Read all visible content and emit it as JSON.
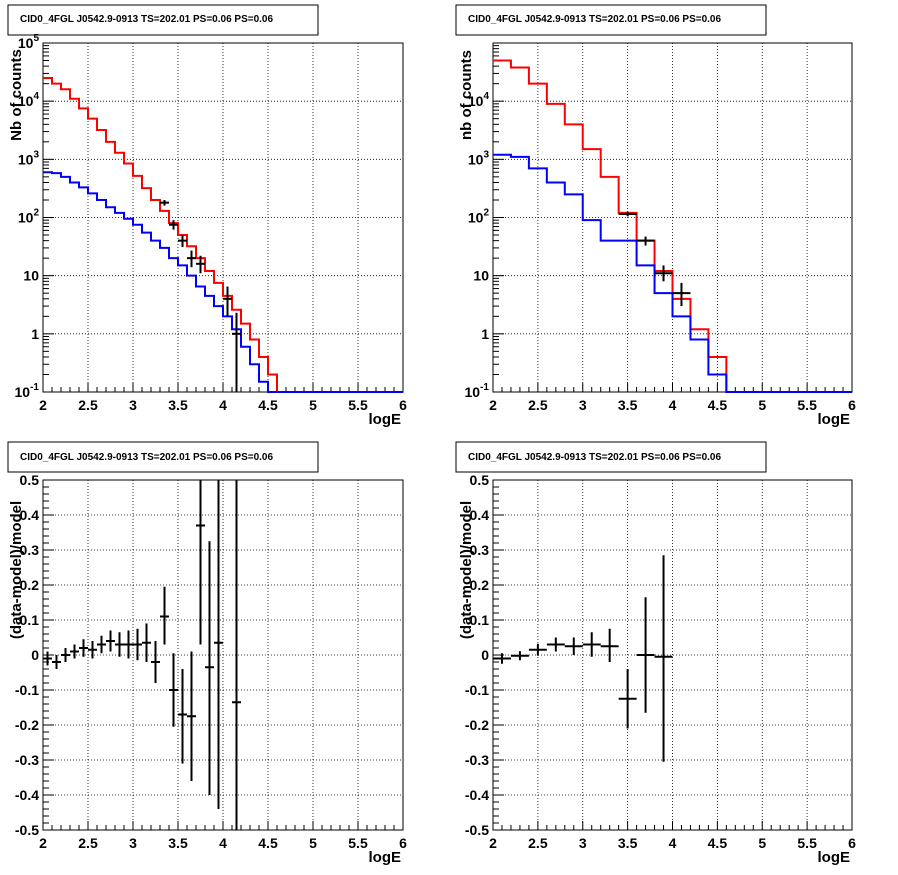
{
  "chart_data": [
    {
      "type": "line",
      "title": "CID0_4FGL J0542.9-0913 TS=202.01 PS=0.06 PS=0.06",
      "xlabel": "logE",
      "ylabel": "Nb of counts",
      "xlim": [
        2,
        6
      ],
      "ylim": [
        0.1,
        100000
      ],
      "yscale": "log",
      "grid": true,
      "x_ticks": [
        "2",
        "2.5",
        "3",
        "3.5",
        "4",
        "4.5",
        "5",
        "5.5",
        "6"
      ],
      "y_ticks": [
        {
          "v": 0.1,
          "base": "10",
          "sup": "-1"
        },
        {
          "v": 1,
          "base": "1",
          "sup": ""
        },
        {
          "v": 10,
          "base": "10",
          "sup": ""
        },
        {
          "v": 100,
          "base": "10",
          "sup": "2"
        },
        {
          "v": 1000,
          "base": "10",
          "sup": "3"
        },
        {
          "v": 10000,
          "base": "10",
          "sup": "4"
        },
        {
          "v": 100000,
          "base": "10",
          "sup": "5"
        }
      ],
      "bin_edges": [
        2,
        2.1,
        2.2,
        2.3,
        2.4,
        2.5,
        2.6,
        2.7,
        2.8,
        2.9,
        3.0,
        3.1,
        3.2,
        3.3,
        3.4,
        3.5,
        3.6,
        3.7,
        3.8,
        3.9,
        4.0,
        4.1,
        4.2,
        4.3,
        4.4,
        4.5,
        4.6,
        4.7,
        4.8,
        4.9,
        5.0,
        5.1,
        5.2,
        5.3,
        5.4,
        5.5,
        5.6,
        5.7,
        5.8,
        5.9,
        6.0
      ],
      "series": [
        {
          "color": "#ff0000",
          "values": [
            25000,
            20000,
            16000,
            11000,
            7500,
            5000,
            3200,
            2000,
            1300,
            850,
            520,
            320,
            200,
            130,
            80,
            50,
            32,
            20,
            12,
            7.5,
            4.5,
            2.6,
            1.5,
            0.8,
            0.4,
            0.2,
            0.1,
            0.1,
            0.1,
            0.1,
            0.1,
            0.1,
            0.1,
            0.1,
            0.1,
            0.1,
            0.1,
            0.1,
            0.1,
            0.1
          ]
        },
        {
          "color": "#0000ff",
          "values": [
            600,
            580,
            500,
            400,
            330,
            260,
            200,
            150,
            120,
            95,
            75,
            55,
            40,
            30,
            20,
            15,
            10,
            6.5,
            4.5,
            3,
            2,
            1.2,
            0.6,
            0.3,
            0.15,
            0.1,
            0.1,
            0.1,
            0.1,
            0.1,
            0.1,
            0.1,
            0.1,
            0.1,
            0.1,
            0.1,
            0.1,
            0.1,
            0.1,
            0.1
          ]
        }
      ],
      "points": [
        {
          "x": 3.35,
          "y": 180,
          "xerr": 0.05,
          "ylo": 160,
          "yhi": 200
        },
        {
          "x": 3.45,
          "y": 75,
          "xerr": 0.05,
          "ylo": 62,
          "yhi": 90
        },
        {
          "x": 3.55,
          "y": 40,
          "xerr": 0.05,
          "ylo": 31,
          "yhi": 50
        },
        {
          "x": 3.65,
          "y": 20,
          "xerr": 0.05,
          "ylo": 14,
          "yhi": 27
        },
        {
          "x": 3.75,
          "y": 16,
          "xerr": 0.05,
          "ylo": 11,
          "yhi": 22
        },
        {
          "x": 4.05,
          "y": 4,
          "xerr": 0.05,
          "ylo": 2,
          "yhi": 6.5
        },
        {
          "x": 4.15,
          "y": 1,
          "xerr": 0.05,
          "ylo": 0.1,
          "yhi": 2.3
        }
      ]
    },
    {
      "type": "line",
      "title": "CID0_4FGL J0542.9-0913 TS=202.01 PS=0.06 PS=0.06",
      "xlabel": "logE",
      "ylabel": "nb of counts",
      "xlim": [
        2,
        6
      ],
      "ylim": [
        0.1,
        100000
      ],
      "yscale": "log",
      "grid": true,
      "x_ticks": [
        "2",
        "2.5",
        "3",
        "3.5",
        "4",
        "4.5",
        "5",
        "5.5",
        "6"
      ],
      "y_ticks": [
        {
          "v": 0.1,
          "base": "10",
          "sup": "-1"
        },
        {
          "v": 1,
          "base": "1",
          "sup": ""
        },
        {
          "v": 10,
          "base": "10",
          "sup": ""
        },
        {
          "v": 100,
          "base": "10",
          "sup": "2"
        },
        {
          "v": 1000,
          "base": "10",
          "sup": "3"
        },
        {
          "v": 10000,
          "base": "10",
          "sup": "4"
        }
      ],
      "bin_edges": [
        2,
        2.2,
        2.4,
        2.6,
        2.8,
        3.0,
        3.2,
        3.4,
        3.6,
        3.8,
        4.0,
        4.2,
        4.4,
        4.6,
        4.8,
        5.0,
        5.2,
        5.4,
        5.6,
        5.8,
        6.0
      ],
      "series": [
        {
          "color": "#ff0000",
          "values": [
            50000,
            38000,
            20000,
            9000,
            4000,
            1500,
            500,
            120,
            40,
            12,
            4,
            1.2,
            0.4,
            0.1,
            0.1,
            0.1,
            0.1,
            0.1,
            0.1,
            0.1
          ]
        },
        {
          "color": "#0000ff",
          "values": [
            1200,
            1100,
            700,
            400,
            250,
            90,
            40,
            40,
            15,
            5,
            2,
            0.8,
            0.2,
            0.1,
            0.1,
            0.1,
            0.1,
            0.1,
            0.1,
            0.1
          ]
        }
      ],
      "points": [
        {
          "x": 3.5,
          "y": 115,
          "xerr": 0.1,
          "ylo": 105,
          "yhi": 126
        },
        {
          "x": 3.7,
          "y": 40,
          "xerr": 0.1,
          "ylo": 33,
          "yhi": 47
        },
        {
          "x": 3.9,
          "y": 11,
          "xerr": 0.1,
          "ylo": 8,
          "yhi": 15
        },
        {
          "x": 4.1,
          "y": 5,
          "xerr": 0.1,
          "ylo": 3,
          "yhi": 7.5
        }
      ]
    },
    {
      "type": "scatter",
      "title": "CID0_4FGL J0542.9-0913 TS=202.01 PS=0.06 PS=0.06",
      "xlabel": "logE",
      "ylabel": "(data-model)/model",
      "xlim": [
        2,
        6
      ],
      "ylim": [
        -0.5,
        0.5
      ],
      "grid": true,
      "x_ticks": [
        "2",
        "2.5",
        "3",
        "3.5",
        "4",
        "4.5",
        "5",
        "5.5",
        "6"
      ],
      "y_ticks": [
        "-0.5",
        "-0.4",
        "-0.3",
        "-0.2",
        "-0.1",
        "0",
        "0.1",
        "0.2",
        "0.3",
        "0.4",
        "0.5"
      ],
      "points": [
        {
          "x": 2.05,
          "y": -0.01,
          "xerr": 0.05,
          "ylo": -0.03,
          "yhi": 0.01
        },
        {
          "x": 2.15,
          "y": -0.02,
          "xerr": 0.05,
          "ylo": -0.04,
          "yhi": 0.0
        },
        {
          "x": 2.25,
          "y": 0.0,
          "xerr": 0.05,
          "ylo": -0.02,
          "yhi": 0.02
        },
        {
          "x": 2.35,
          "y": 0.01,
          "xerr": 0.05,
          "ylo": -0.01,
          "yhi": 0.03
        },
        {
          "x": 2.45,
          "y": 0.02,
          "xerr": 0.05,
          "ylo": -0.005,
          "yhi": 0.045
        },
        {
          "x": 2.55,
          "y": 0.015,
          "xerr": 0.05,
          "ylo": -0.01,
          "yhi": 0.04
        },
        {
          "x": 2.65,
          "y": 0.03,
          "xerr": 0.05,
          "ylo": 0.005,
          "yhi": 0.055
        },
        {
          "x": 2.75,
          "y": 0.04,
          "xerr": 0.05,
          "ylo": 0.01,
          "yhi": 0.07
        },
        {
          "x": 2.85,
          "y": 0.03,
          "xerr": 0.05,
          "ylo": -0.005,
          "yhi": 0.065
        },
        {
          "x": 2.95,
          "y": 0.03,
          "xerr": 0.05,
          "ylo": -0.01,
          "yhi": 0.07
        },
        {
          "x": 3.05,
          "y": 0.03,
          "xerr": 0.05,
          "ylo": -0.015,
          "yhi": 0.075
        },
        {
          "x": 3.15,
          "y": 0.035,
          "xerr": 0.05,
          "ylo": -0.02,
          "yhi": 0.09
        },
        {
          "x": 3.25,
          "y": -0.02,
          "xerr": 0.05,
          "ylo": -0.08,
          "yhi": 0.04
        },
        {
          "x": 3.35,
          "y": 0.11,
          "xerr": 0.05,
          "ylo": 0.03,
          "yhi": 0.195
        },
        {
          "x": 3.45,
          "y": -0.1,
          "xerr": 0.05,
          "ylo": -0.205,
          "yhi": 0.005
        },
        {
          "x": 3.55,
          "y": -0.17,
          "xerr": 0.05,
          "ylo": -0.31,
          "yhi": -0.04
        },
        {
          "x": 3.65,
          "y": -0.175,
          "xerr": 0.05,
          "ylo": -0.36,
          "yhi": 0.01
        },
        {
          "x": 3.75,
          "y": 0.37,
          "xerr": 0.05,
          "ylo": 0.03,
          "yhi": 0.5
        },
        {
          "x": 3.85,
          "y": -0.035,
          "xerr": 0.05,
          "ylo": -0.4,
          "yhi": 0.325
        },
        {
          "x": 3.95,
          "y": 0.035,
          "xerr": 0.05,
          "ylo": -0.44,
          "yhi": 0.5
        },
        {
          "x": 4.15,
          "y": -0.135,
          "xerr": 0.05,
          "ylo": -0.5,
          "yhi": 0.5
        }
      ]
    },
    {
      "type": "scatter",
      "title": "CID0_4FGL J0542.9-0913 TS=202.01 PS=0.06 PS=0.06",
      "xlabel": "logE",
      "ylabel": "(data-model)/model",
      "xlim": [
        2,
        6
      ],
      "ylim": [
        -0.5,
        0.5
      ],
      "grid": true,
      "x_ticks": [
        "2",
        "2.5",
        "3",
        "3.5",
        "4",
        "4.5",
        "5",
        "5.5",
        "6"
      ],
      "y_ticks": [
        "-0.5",
        "-0.4",
        "-0.3",
        "-0.2",
        "-0.1",
        "0",
        "0.1",
        "0.2",
        "0.3",
        "0.4",
        "0.5"
      ],
      "points": [
        {
          "x": 2.1,
          "y": -0.01,
          "xerr": 0.1,
          "ylo": -0.025,
          "yhi": 0.005
        },
        {
          "x": 2.3,
          "y": -0.002,
          "xerr": 0.1,
          "ylo": -0.015,
          "yhi": 0.011
        },
        {
          "x": 2.5,
          "y": 0.015,
          "xerr": 0.1,
          "ylo": -0.002,
          "yhi": 0.032
        },
        {
          "x": 2.7,
          "y": 0.03,
          "xerr": 0.1,
          "ylo": 0.01,
          "yhi": 0.05
        },
        {
          "x": 2.9,
          "y": 0.025,
          "xerr": 0.1,
          "ylo": 0.0,
          "yhi": 0.05
        },
        {
          "x": 3.1,
          "y": 0.03,
          "xerr": 0.1,
          "ylo": -0.005,
          "yhi": 0.065
        },
        {
          "x": 3.3,
          "y": 0.025,
          "xerr": 0.1,
          "ylo": -0.02,
          "yhi": 0.075
        },
        {
          "x": 3.5,
          "y": -0.125,
          "xerr": 0.1,
          "ylo": -0.21,
          "yhi": -0.04
        },
        {
          "x": 3.7,
          "y": 0.0,
          "xerr": 0.1,
          "ylo": -0.165,
          "yhi": 0.165
        },
        {
          "x": 3.9,
          "y": -0.005,
          "xerr": 0.1,
          "ylo": -0.305,
          "yhi": 0.285
        }
      ]
    }
  ]
}
